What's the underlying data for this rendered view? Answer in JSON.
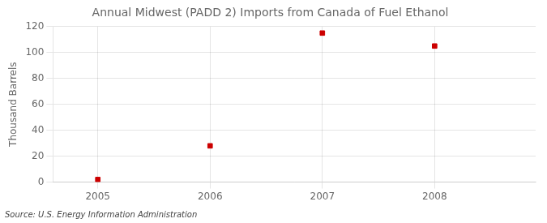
{
  "chart_data": {
    "type": "scatter",
    "title": "Annual Midwest (PADD 2) Imports from Canada of Fuel Ethanol",
    "ylabel": "Thousand Barrels",
    "annotations": [
      "Source: U.S. Energy Information Administration"
    ],
    "x": [
      2005,
      2006,
      2007,
      2008
    ],
    "values": [
      2,
      28,
      115,
      105
    ],
    "color": "#cc0000",
    "marker": "square",
    "xlim": [
      2004.6,
      2008.9
    ],
    "xticks": [
      2005,
      2006,
      2007,
      2008
    ],
    "ylim": [
      0,
      120
    ],
    "yticks": [
      0,
      20,
      40,
      60,
      80,
      100,
      120
    ],
    "grid": true
  }
}
